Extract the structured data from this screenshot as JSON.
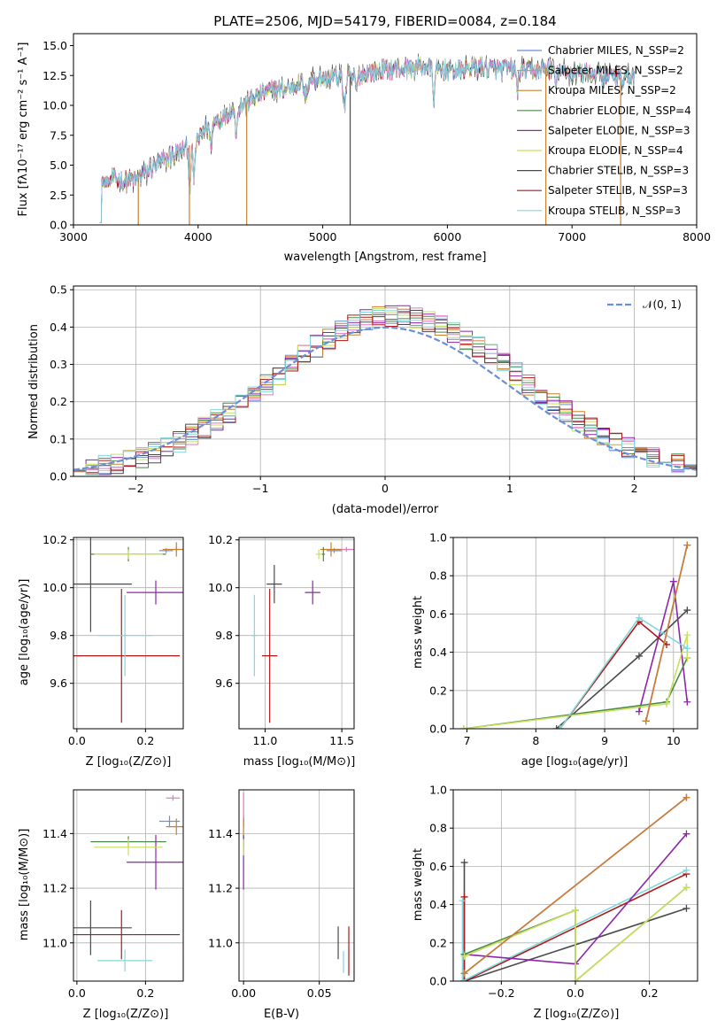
{
  "colors": {
    "chabrier_miles": "#6b8ed6",
    "salpeter_miles": "#e377c2",
    "kroupa_miles": "#c9802e",
    "chabrier_elodie": "#4a8a4a",
    "salpeter_elodie": "#8e24aa",
    "kroupa_elodie": "#c8e05a",
    "chabrier_stelib": "#4a4a4a",
    "salpeter_stelib": "#b01818",
    "kroupa_stelib": "#80d8dc",
    "normal": "#6b8ed6"
  },
  "chart_data": [
    {
      "type": "line",
      "id": "spectrum",
      "title": "PLATE=2506, MJD=54179, FIBERID=0084, z=0.184",
      "xlabel": "wavelength [Angstrom, rest frame]",
      "ylabel": "Flux [fλ10⁻¹⁷ erg cm⁻² s⁻¹ A⁻¹]",
      "xlim": [
        3000,
        8000
      ],
      "ylim": [
        0,
        16
      ],
      "xticks": [
        "3000",
        "4000",
        "5000",
        "6000",
        "7000",
        "8000"
      ],
      "xtick_values": [
        3000,
        4000,
        5000,
        6000,
        7000,
        8000
      ],
      "yticks": [
        "0.0",
        "2.5",
        "5.0",
        "7.5",
        "10.0",
        "12.5",
        "15.0"
      ],
      "ytick_values": [
        0,
        2.5,
        5,
        7.5,
        10,
        12.5,
        15
      ],
      "continuum": {
        "x": [
          3210,
          3300,
          3400,
          3500,
          3600,
          3700,
          3800,
          3900,
          4000,
          4100,
          4200,
          4300,
          4400,
          4500,
          4600,
          4700,
          4800,
          4900,
          5000,
          5100,
          5200,
          5300,
          5400,
          5500,
          5600,
          5700,
          5800,
          5900,
          6000,
          6100,
          6200,
          6300,
          6400,
          6500,
          6600,
          6700,
          6800,
          6900,
          7000,
          7100,
          7200,
          7300,
          7400,
          7500
        ],
        "y": [
          0.4,
          3.9,
          3.7,
          3.8,
          4.5,
          5.3,
          5.9,
          6.4,
          7.3,
          8.4,
          9.1,
          9.7,
          10.3,
          10.9,
          11.3,
          11.4,
          11.8,
          12.1,
          12.3,
          12.4,
          12.3,
          12.6,
          12.8,
          13.0,
          13.0,
          13.1,
          13.3,
          13.0,
          12.9,
          12.9,
          13.2,
          13.2,
          13.0,
          13.1,
          13.0,
          12.9,
          13.2,
          12.9,
          12.7,
          12.8,
          12.6,
          12.5,
          12.3,
          12.4
        ]
      },
      "series": [
        {
          "name": "Chabrier MILES, N_SSP=2",
          "color_key": "chabrier_miles"
        },
        {
          "name": "Salpeter MILES, N_SSP=2",
          "color_key": "salpeter_miles"
        },
        {
          "name": "Kroupa MILES, N_SSP=2",
          "color_key": "kroupa_miles"
        },
        {
          "name": "Chabrier ELODIE, N_SSP=4",
          "color_key": "chabrier_elodie"
        },
        {
          "name": "Salpeter ELODIE, N_SSP=3",
          "color_key": "salpeter_elodie"
        },
        {
          "name": "Kroupa ELODIE, N_SSP=4",
          "color_key": "kroupa_elodie"
        },
        {
          "name": "Chabrier STELIB, N_SSP=3",
          "color_key": "chabrier_stelib"
        },
        {
          "name": "Salpeter STELIB, N_SSP=3",
          "color_key": "salpeter_stelib"
        },
        {
          "name": "Kroupa STELIB, N_SSP=3",
          "color_key": "kroupa_stelib"
        }
      ],
      "legend_position": "upper-right"
    },
    {
      "type": "histogram",
      "id": "residuals",
      "xlabel": "(data-model)/error",
      "ylabel": "Normed distribution",
      "xlim": [
        -2.5,
        2.5
      ],
      "ylim": [
        0,
        0.51
      ],
      "xticks": [
        "−2",
        "−1",
        "0",
        "1",
        "2"
      ],
      "xtick_values": [
        -2,
        -1,
        0,
        1,
        2
      ],
      "yticks": [
        "0.0",
        "0.1",
        "0.2",
        "0.3",
        "0.4",
        "0.5"
      ],
      "ytick_values": [
        0,
        0.1,
        0.2,
        0.3,
        0.4,
        0.5
      ],
      "bin_width": 0.1,
      "normal_legend": "𝒩(0, 1)",
      "legend_position": "upper-right"
    },
    {
      "type": "scatter",
      "id": "age_vs_Z",
      "xlabel": "Z [log₁₀(Z/Z⊙)]",
      "ylabel": "age  [log₁₀(age/yr)]",
      "xlim": [
        -0.01,
        0.31
      ],
      "ylim": [
        9.41,
        10.21
      ],
      "xticks": [
        "0.0",
        "0.2"
      ],
      "xtick_values": [
        0,
        0.2
      ],
      "yticks": [
        "9.6",
        "9.8",
        "10.0",
        "10.2"
      ],
      "ytick_values": [
        9.6,
        9.8,
        10.0,
        10.2
      ],
      "points": [
        {
          "key": "chabrier_miles",
          "x": 0.26,
          "xerr": 0.02,
          "y": 10.155,
          "yerr": 0.01
        },
        {
          "key": "salpeter_miles",
          "x": 0.29,
          "xerr": 0.01,
          "y": 10.16,
          "yerr": 0.01
        },
        {
          "key": "kroupa_miles",
          "x": 0.29,
          "xerr": 0.04,
          "y": 10.16,
          "yerr": 0.03
        },
        {
          "key": "chabrier_elodie",
          "x": 0.15,
          "xerr": 0.11,
          "y": 10.14,
          "yerr": 0.03
        },
        {
          "key": "salpeter_elodie",
          "x": 0.23,
          "xerr": 0.085,
          "y": 9.98,
          "yerr": 0.05
        },
        {
          "key": "kroupa_elodie",
          "x": 0.15,
          "xerr": 0.1,
          "y": 10.14,
          "yerr": 0.02
        },
        {
          "key": "chabrier_stelib",
          "x": 0.04,
          "xerr": 0.12,
          "y": 10.015,
          "yerr": 0.2
        },
        {
          "key": "salpeter_stelib",
          "x": 0.13,
          "xerr": 0.17,
          "y": 9.715,
          "yerr": 0.28
        },
        {
          "key": "kroupa_stelib",
          "x": 0.14,
          "xerr": 0.08,
          "y": 9.8,
          "yerr": 0.17
        }
      ]
    },
    {
      "type": "scatter",
      "id": "age_vs_mass",
      "xlabel": "mass [log₁₀(M/M⊙)]",
      "ylabel": "",
      "xlim": [
        10.83,
        11.58
      ],
      "ylim": [
        9.41,
        10.21
      ],
      "xticks": [
        "11.0",
        "11.5"
      ],
      "xtick_values": [
        11.0,
        11.5
      ],
      "yticks": [
        "9.6",
        "9.8",
        "10.0",
        "10.2"
      ],
      "ytick_values": [
        9.6,
        9.8,
        10.0,
        10.2
      ],
      "points": [
        {
          "key": "chabrier_miles",
          "x": 11.45,
          "xerr": 0.05,
          "y": 10.155,
          "yerr": 0.01
        },
        {
          "key": "salpeter_miles",
          "x": 11.53,
          "xerr": 0.08,
          "y": 10.16,
          "yerr": 0.01
        },
        {
          "key": "kroupa_miles",
          "x": 11.43,
          "xerr": 0.07,
          "y": 10.16,
          "yerr": 0.03
        },
        {
          "key": "chabrier_elodie",
          "x": 11.38,
          "xerr": 0.01,
          "y": 10.14,
          "yerr": 0.03
        },
        {
          "key": "salpeter_elodie",
          "x": 11.31,
          "xerr": 0.05,
          "y": 9.98,
          "yerr": 0.05
        },
        {
          "key": "kroupa_elodie",
          "x": 11.35,
          "xerr": 0.02,
          "y": 10.14,
          "yerr": 0.02
        },
        {
          "key": "chabrier_stelib",
          "x": 11.06,
          "xerr": 0.05,
          "y": 10.015,
          "yerr": 0.08
        },
        {
          "key": "salpeter_stelib",
          "x": 11.03,
          "xerr": 0.05,
          "y": 9.715,
          "yerr": 0.28
        },
        {
          "key": "kroupa_stelib",
          "x": 10.93,
          "xerr": 0.02,
          "y": 9.8,
          "yerr": 0.17
        }
      ]
    },
    {
      "type": "line",
      "id": "mass_weight_vs_age",
      "xlabel": "age  [log₁₀(age/yr)]",
      "ylabel": "mass weight",
      "xlim": [
        6.8,
        10.35
      ],
      "ylim": [
        0,
        1
      ],
      "xticks": [
        "7",
        "8",
        "9",
        "10"
      ],
      "xtick_values": [
        7,
        8,
        9,
        10
      ],
      "yticks": [
        "0.0",
        "0.2",
        "0.4",
        "0.6",
        "0.8",
        "1.0"
      ],
      "ytick_values": [
        0,
        0.2,
        0.4,
        0.6,
        0.8,
        1.0
      ],
      "series": [
        {
          "key": "chabrier_stelib",
          "x": [
            8.3,
            9.5,
            10.2
          ],
          "y": [
            0.0,
            0.38,
            0.62
          ]
        },
        {
          "key": "salpeter_elodie",
          "x": [
            9.5,
            10.0,
            10.2
          ],
          "y": [
            0.09,
            0.77,
            0.14
          ]
        },
        {
          "key": "chabrier_elodie",
          "x": [
            6.95,
            9.9,
            10.2
          ],
          "y": [
            0.0,
            0.14,
            0.37
          ]
        },
        {
          "key": "kroupa_elodie",
          "x": [
            6.95,
            9.9,
            10.2,
            10.2
          ],
          "y": [
            0.0,
            0.13,
            0.49,
            0.37
          ]
        },
        {
          "key": "salpeter_stelib",
          "x": [
            8.35,
            9.5,
            9.9
          ],
          "y": [
            0.0,
            0.56,
            0.44
          ]
        },
        {
          "key": "kroupa_stelib",
          "x": [
            8.35,
            9.5,
            10.2
          ],
          "y": [
            0.0,
            0.58,
            0.42
          ]
        },
        {
          "key": "chabrier_miles",
          "x": [
            9.6,
            10.2
          ],
          "y": [
            0.04,
            0.96
          ]
        },
        {
          "key": "salpeter_miles",
          "x": [
            9.6,
            10.2
          ],
          "y": [
            0.04,
            0.96
          ]
        },
        {
          "key": "kroupa_miles",
          "x": [
            9.6,
            10.2
          ],
          "y": [
            0.04,
            0.96
          ]
        }
      ]
    },
    {
      "type": "scatter",
      "id": "mass_vs_Z",
      "xlabel": "Z [log₁₀(Z/Z⊙)]",
      "ylabel": "mass [log₁₀(M/M⊙)]",
      "xlim": [
        -0.01,
        0.31
      ],
      "ylim": [
        10.86,
        11.56
      ],
      "xticks": [
        "0.0",
        "0.2"
      ],
      "xtick_values": [
        0,
        0.2
      ],
      "yticks": [
        "11.0",
        "11.2",
        "11.4"
      ],
      "ytick_values": [
        11.0,
        11.2,
        11.4
      ],
      "points": [
        {
          "key": "chabrier_miles",
          "x": 0.27,
          "xerr": 0.03,
          "y": 11.445,
          "yerr": 0.02
        },
        {
          "key": "salpeter_miles",
          "x": 0.28,
          "xerr": 0.02,
          "y": 11.53,
          "yerr": 0.01
        },
        {
          "key": "kroupa_miles",
          "x": 0.29,
          "xerr": 0.03,
          "y": 11.425,
          "yerr": 0.03
        },
        {
          "key": "chabrier_elodie",
          "x": 0.15,
          "xerr": 0.11,
          "y": 11.37,
          "yerr": 0.02
        },
        {
          "key": "salpeter_elodie",
          "x": 0.23,
          "xerr": 0.085,
          "y": 11.295,
          "yerr": 0.1
        },
        {
          "key": "kroupa_elodie",
          "x": 0.15,
          "xerr": 0.1,
          "y": 11.35,
          "yerr": 0.03
        },
        {
          "key": "chabrier_stelib",
          "x": 0.04,
          "xerr": 0.12,
          "y": 11.055,
          "yerr": 0.1
        },
        {
          "key": "salpeter_stelib",
          "x": 0.13,
          "xerr": 0.17,
          "y": 11.03,
          "yerr": 0.09
        },
        {
          "key": "kroupa_stelib",
          "x": 0.14,
          "xerr": 0.08,
          "y": 10.935,
          "yerr": 0.04
        }
      ]
    },
    {
      "type": "scatter",
      "id": "mass_vs_ebv",
      "xlabel": "E(B-V)",
      "ylabel": "",
      "xlim": [
        -0.003,
        0.073
      ],
      "ylim": [
        10.86,
        11.56
      ],
      "xticks": [
        "0.00",
        "0.05"
      ],
      "xtick_values": [
        0,
        0.05
      ],
      "yticks": [
        "11.0",
        "11.2",
        "11.4"
      ],
      "ytick_values": [
        11.0,
        11.2,
        11.4
      ],
      "points": [
        {
          "key": "chabrier_miles",
          "x": 0.0,
          "xerr": 0.0,
          "y": 11.445,
          "yerr": 0.02
        },
        {
          "key": "salpeter_miles",
          "x": 0.0,
          "xerr": 0.0,
          "y": 11.5,
          "yerr": 0.05
        },
        {
          "key": "kroupa_miles",
          "x": 0.0,
          "xerr": 0.0,
          "y": 11.425,
          "yerr": 0.03
        },
        {
          "key": "chabrier_elodie",
          "x": 0.0,
          "xerr": 0.0,
          "y": 11.37,
          "yerr": 0.02
        },
        {
          "key": "salpeter_elodie",
          "x": 0.0,
          "xerr": 0.0,
          "y": 11.295,
          "yerr": 0.1
        },
        {
          "key": "kroupa_elodie",
          "x": 0.0,
          "xerr": 0.0,
          "y": 11.35,
          "yerr": 0.03
        },
        {
          "key": "chabrier_stelib",
          "x": 0.0625,
          "xerr": 0.0,
          "y": 11.0,
          "yerr": 0.06
        },
        {
          "key": "salpeter_stelib",
          "x": 0.0695,
          "xerr": 0.0,
          "y": 10.97,
          "yerr": 0.09
        },
        {
          "key": "kroupa_stelib",
          "x": 0.066,
          "xerr": 0.0,
          "y": 10.93,
          "yerr": 0.04
        }
      ]
    },
    {
      "type": "line",
      "id": "mass_weight_vs_Z",
      "xlabel": "Z [log₁₀(Z/Z⊙)]",
      "ylabel": "mass weight",
      "xlim": [
        -0.33,
        0.33
      ],
      "ylim": [
        0,
        1
      ],
      "xticks": [
        "−0.2",
        "0.0",
        "0.2"
      ],
      "xtick_values": [
        -0.2,
        0,
        0.2
      ],
      "yticks": [
        "0.0",
        "0.2",
        "0.4",
        "0.6",
        "0.8",
        "1.0"
      ],
      "ytick_values": [
        0,
        0.2,
        0.4,
        0.6,
        0.8,
        1.0
      ],
      "series": [
        {
          "key": "chabrier_stelib",
          "x": [
            -0.3,
            -0.3,
            -0.3,
            0.3
          ],
          "y": [
            0.62,
            0.0,
            0.0,
            0.38
          ]
        },
        {
          "key": "salpeter_stelib",
          "x": [
            -0.3,
            -0.3,
            0.3
          ],
          "y": [
            0.44,
            0.0,
            0.56
          ]
        },
        {
          "key": "kroupa_stelib",
          "x": [
            -0.305,
            -0.305,
            0.3
          ],
          "y": [
            0.42,
            0.0,
            0.58
          ]
        },
        {
          "key": "salpeter_elodie",
          "x": [
            -0.3,
            0.0,
            0.3
          ],
          "y": [
            0.14,
            0.09,
            0.77
          ]
        },
        {
          "key": "chabrier_elodie",
          "x": [
            -0.3,
            0.0,
            0.0,
            0.3
          ],
          "y": [
            0.14,
            0.37,
            0.0,
            0.49
          ]
        },
        {
          "key": "kroupa_elodie",
          "x": [
            -0.3,
            0.0,
            0.0,
            0.3
          ],
          "y": [
            0.13,
            0.37,
            0.0,
            0.49
          ]
        },
        {
          "key": "chabrier_miles",
          "x": [
            -0.3,
            0.3
          ],
          "y": [
            0.04,
            0.96
          ]
        },
        {
          "key": "salpeter_miles",
          "x": [
            -0.3,
            0.3
          ],
          "y": [
            0.04,
            0.96
          ]
        },
        {
          "key": "kroupa_miles",
          "x": [
            -0.3,
            0.3
          ],
          "y": [
            0.04,
            0.96
          ]
        }
      ]
    }
  ]
}
